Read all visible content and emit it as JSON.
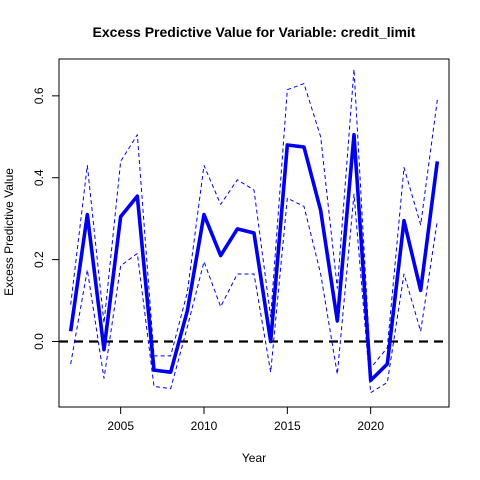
{
  "chart_data": {
    "type": "line",
    "title": "Excess Predictive Value for Variable: credit_limit",
    "xlabel": "Year",
    "ylabel": "Excess Predictive Value",
    "xlim": [
      2001.3,
      2024.7
    ],
    "ylim": [
      -0.16,
      0.69
    ],
    "x_ticks": [
      2005,
      2010,
      2015,
      2020
    ],
    "y_ticks": [
      0.0,
      0.2,
      0.4,
      0.6
    ],
    "x_tick_labels": [
      "2005",
      "2010",
      "2015",
      "2020"
    ],
    "y_tick_labels": [
      "0.0",
      "0.2",
      "0.4",
      "0.6"
    ],
    "reference_line": {
      "y": 0.0,
      "style": "dashed",
      "color": "#000000"
    },
    "x": [
      2002,
      2003,
      2004,
      2005,
      2006,
      2007,
      2008,
      2009,
      2010,
      2011,
      2012,
      2013,
      2014,
      2015,
      2016,
      2017,
      2018,
      2019,
      2020,
      2021,
      2022,
      2023,
      2024
    ],
    "series": [
      {
        "role": "estimate",
        "color": "#0000ee",
        "style": "solid-thick",
        "values": [
          0.025,
          0.31,
          -0.02,
          0.305,
          0.355,
          -0.07,
          -0.075,
          0.075,
          0.31,
          0.21,
          0.275,
          0.265,
          0.0,
          0.48,
          0.475,
          0.32,
          0.05,
          0.505,
          -0.095,
          -0.055,
          0.295,
          0.125,
          0.44
        ]
      },
      {
        "role": "upper",
        "color": "#0000ee",
        "style": "dashed",
        "values": [
          0.09,
          0.43,
          0.045,
          0.44,
          0.505,
          -0.035,
          -0.035,
          0.12,
          0.43,
          0.335,
          0.395,
          0.37,
          0.06,
          0.615,
          0.63,
          0.5,
          0.13,
          0.665,
          -0.065,
          -0.015,
          0.425,
          0.285,
          0.59
        ]
      },
      {
        "role": "lower",
        "color": "#0000ee",
        "style": "dashed",
        "values": [
          -0.055,
          0.175,
          -0.09,
          0.185,
          0.215,
          -0.11,
          -0.115,
          0.035,
          0.195,
          0.085,
          0.165,
          0.165,
          -0.075,
          0.35,
          0.33,
          0.165,
          -0.08,
          0.36,
          -0.125,
          -0.1,
          0.165,
          0.025,
          0.295
        ]
      }
    ],
    "grid": false,
    "legend": "none"
  }
}
